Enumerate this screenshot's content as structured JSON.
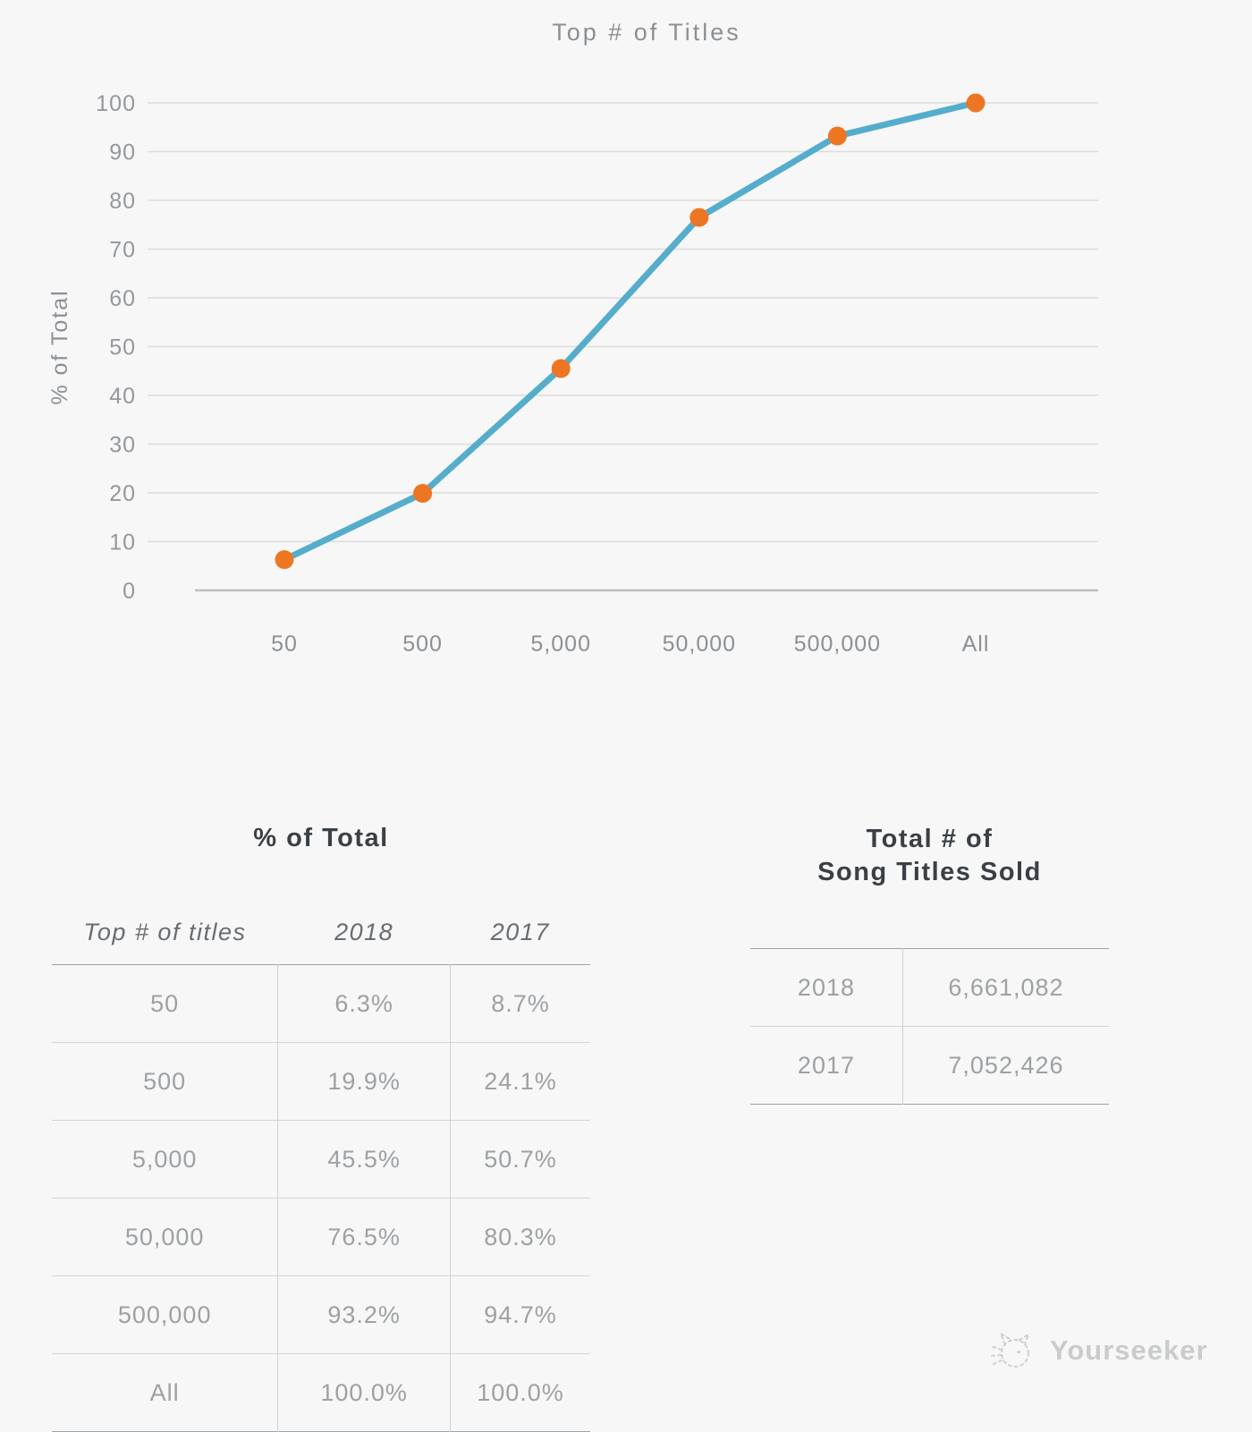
{
  "chart": {
    "title": "Top # of Titles",
    "y_axis_label": "% of Total"
  },
  "chart_data": {
    "type": "line",
    "title": "Top # of Titles",
    "xlabel": "",
    "ylabel": "% of Total",
    "categories": [
      "50",
      "500",
      "5,000",
      "50,000",
      "500,000",
      "All"
    ],
    "series": [
      {
        "name": "2018",
        "values": [
          6.3,
          19.9,
          45.5,
          76.5,
          93.2,
          100.0
        ]
      }
    ],
    "ylim": [
      0,
      100
    ],
    "yticks": [
      0,
      10,
      20,
      30,
      40,
      50,
      60,
      70,
      80,
      90,
      100
    ],
    "grid": true,
    "legend_position": "none",
    "line_color": "#55adcb",
    "marker_color": "#ee7623"
  },
  "tables": {
    "percent_of_total": {
      "caption": "% of Total",
      "columns": [
        "Top # of titles",
        "2018",
        "2017"
      ],
      "rows": [
        [
          "50",
          "6.3%",
          "8.7%"
        ],
        [
          "500",
          "19.9%",
          "24.1%"
        ],
        [
          "5,000",
          "45.5%",
          "50.7%"
        ],
        [
          "50,000",
          "76.5%",
          "80.3%"
        ],
        [
          "500,000",
          "93.2%",
          "94.7%"
        ],
        [
          "All",
          "100.0%",
          "100.0%"
        ]
      ]
    },
    "song_titles_sold": {
      "caption_line1": "Total # of",
      "caption_line2": "Song Titles Sold",
      "rows": [
        [
          "2018",
          "6,661,082"
        ],
        [
          "2017",
          "7,052,426"
        ]
      ]
    }
  },
  "watermark": {
    "label": "Yourseeker"
  },
  "colors": {
    "background": "#f7f7f7",
    "line": "#55adcb",
    "marker": "#ee7623",
    "grid": "#dcdcdc",
    "caption_text": "#3b4046",
    "body_text": "#9da1a4",
    "axis_text": "#8b9095",
    "watermark_text": "#c9cbcd"
  }
}
